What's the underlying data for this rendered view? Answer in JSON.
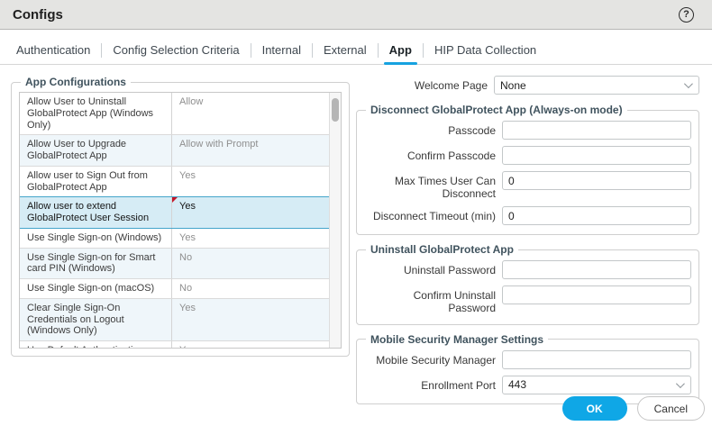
{
  "window": {
    "title": "Configs",
    "help_icon": "?"
  },
  "tabs": [
    {
      "label": "Authentication",
      "active": false
    },
    {
      "label": "Config Selection Criteria",
      "active": false
    },
    {
      "label": "Internal",
      "active": false
    },
    {
      "label": "External",
      "active": false
    },
    {
      "label": "App",
      "active": true
    },
    {
      "label": "HIP Data Collection",
      "active": false
    }
  ],
  "left_panel": {
    "legend": "App Configurations",
    "rows": [
      {
        "name": "Allow User to Uninstall GlobalProtect App (Windows Only)",
        "value": "Allow",
        "selected": false,
        "modified": false
      },
      {
        "name": "Allow User to Upgrade GlobalProtect App",
        "value": "Allow with Prompt",
        "selected": false,
        "modified": false
      },
      {
        "name": "Allow user to Sign Out from GlobalProtect App",
        "value": "Yes",
        "selected": false,
        "modified": false
      },
      {
        "name": "Allow user to extend GlobalProtect User Session",
        "value": "Yes",
        "selected": true,
        "modified": true
      },
      {
        "name": "Use Single Sign-on (Windows)",
        "value": "Yes",
        "selected": false,
        "modified": false
      },
      {
        "name": "Use Single Sign-on for Smart card PIN (Windows)",
        "value": "No",
        "selected": false,
        "modified": false
      },
      {
        "name": "Use Single Sign-on (macOS)",
        "value": "No",
        "selected": false,
        "modified": false
      },
      {
        "name": "Clear Single Sign-On Credentials on Logout (Windows Only)",
        "value": "Yes",
        "selected": false,
        "modified": false
      },
      {
        "name": "Use Default Authentication on Kerberos Authentication Failure",
        "value": "Yes",
        "selected": false,
        "modified": false
      }
    ]
  },
  "right_panel": {
    "welcome": {
      "label": "Welcome Page",
      "value": "None",
      "control": "select"
    },
    "sections": [
      {
        "legend": "Disconnect GlobalProtect App (Always-on mode)",
        "fields": [
          {
            "label": "Passcode",
            "value": "",
            "control": "text"
          },
          {
            "label": "Confirm Passcode",
            "value": "",
            "control": "text"
          },
          {
            "label": "Max Times User Can Disconnect",
            "value": "0",
            "control": "text"
          },
          {
            "label": "Disconnect Timeout (min)",
            "value": "0",
            "control": "text"
          }
        ]
      },
      {
        "legend": "Uninstall GlobalProtect App",
        "fields": [
          {
            "label": "Uninstall Password",
            "value": "",
            "control": "text"
          },
          {
            "label": "Confirm Uninstall Password",
            "value": "",
            "control": "text"
          }
        ]
      },
      {
        "legend": "Mobile Security Manager Settings",
        "fields": [
          {
            "label": "Mobile Security Manager",
            "value": "",
            "control": "text"
          },
          {
            "label": "Enrollment Port",
            "value": "443",
            "control": "select"
          }
        ]
      }
    ]
  },
  "footer": {
    "ok_label": "OK",
    "cancel_label": "Cancel"
  },
  "colors": {
    "accent_blue": "#16a2e0",
    "ok_button": "#0fa7e6",
    "selected_row_bg": "#d6ecf5",
    "selected_row_border": "#44a5ca",
    "stripe_row_bg": "#eff6fa",
    "modified_marker_red": "#c41527",
    "titlebar_bg": "#e4e4e2",
    "legend_text": "#40535e"
  }
}
